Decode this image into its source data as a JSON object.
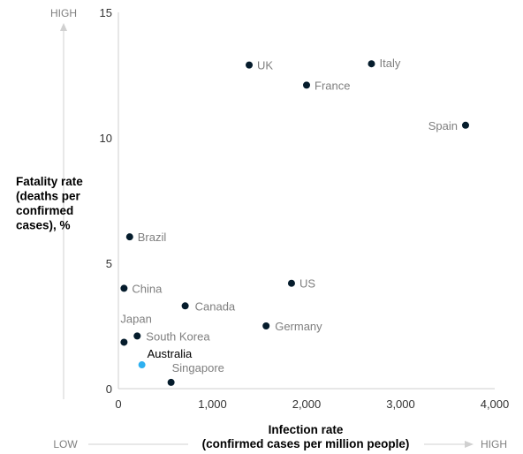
{
  "chart_data": {
    "type": "scatter",
    "xlabel": "Infection rate",
    "xlabel_sub": "(confirmed cases per million people)",
    "ylabel_lines": [
      "Fatality rate",
      "(deaths per",
      "confirmed",
      "cases), %"
    ],
    "xlim": [
      0,
      4000
    ],
    "ylim": [
      0,
      15
    ],
    "x_ticks": [
      0,
      1000,
      2000,
      3000,
      4000
    ],
    "x_tick_labels": [
      "0",
      "1,000",
      "2,000",
      "3,000",
      "4,000"
    ],
    "y_ticks": [
      0,
      5,
      10,
      15
    ],
    "y_tick_labels": [
      "0",
      "5",
      "10",
      "15"
    ],
    "grid": false,
    "y_axis_high": "HIGH",
    "x_axis_low": "LOW",
    "x_axis_high": "HIGH",
    "point_color": "#051c2c",
    "highlight_color": "#2eb0f0",
    "points": [
      {
        "label": "UK",
        "x": 1390,
        "y": 12.9
      },
      {
        "label": "Italy",
        "x": 2690,
        "y": 12.95
      },
      {
        "label": "France",
        "x": 2000,
        "y": 12.1
      },
      {
        "label": "Spain",
        "x": 3690,
        "y": 10.5
      },
      {
        "label": "Brazil",
        "x": 120,
        "y": 6.05
      },
      {
        "label": "US",
        "x": 1840,
        "y": 4.2
      },
      {
        "label": "China",
        "x": 60,
        "y": 4.0
      },
      {
        "label": "Canada",
        "x": 710,
        "y": 3.3
      },
      {
        "label": "Germany",
        "x": 1570,
        "y": 2.5
      },
      {
        "label": "South Korea",
        "x": 200,
        "y": 2.1
      },
      {
        "label": "Japan",
        "x": 60,
        "y": 1.85
      },
      {
        "label": "Australia",
        "x": 250,
        "y": 0.95,
        "highlight": true
      },
      {
        "label": "Singapore",
        "x": 560,
        "y": 0.25
      }
    ]
  }
}
